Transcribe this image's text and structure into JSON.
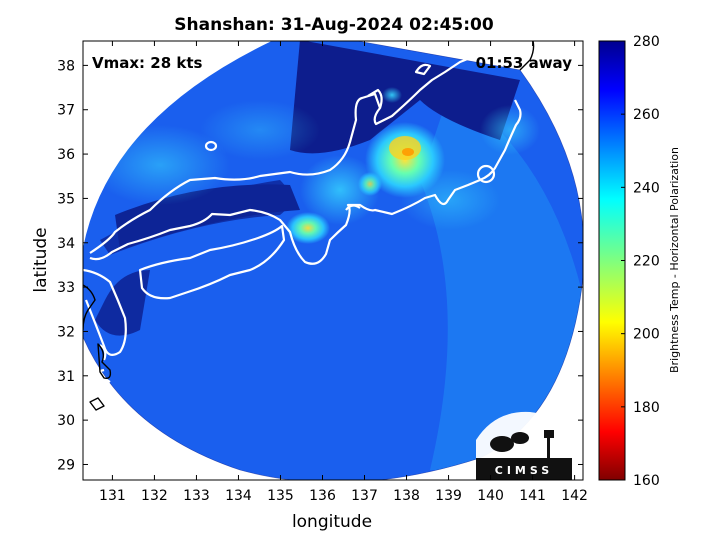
{
  "title": "Shanshan: 31-Aug-2024 02:45:00",
  "annotations": {
    "vmax": "Vmax: 28 kts",
    "time_away": "01:53 away"
  },
  "logo_text": "CIMSS",
  "axes": {
    "xlabel": "longitude",
    "ylabel": "latitude",
    "xlim": [
      130.3,
      142.2
    ],
    "ylim": [
      28.65,
      38.55
    ],
    "xticks": [
      "131",
      "132",
      "133",
      "134",
      "135",
      "136",
      "137",
      "138",
      "139",
      "140",
      "141",
      "142"
    ],
    "yticks": [
      "29",
      "30",
      "31",
      "32",
      "33",
      "34",
      "35",
      "36",
      "37",
      "38"
    ]
  },
  "colorbar": {
    "label": "Brightness Temp - Horizontal Polarization",
    "ticks": [
      "280",
      "260",
      "240",
      "220",
      "200",
      "180",
      "160"
    ],
    "range": [
      160,
      280
    ],
    "colormap": "jet"
  },
  "colors": {
    "background_field": "#1a55e8",
    "deep_blue": "#0c1c8c",
    "coastline": "#ffffff",
    "outer_coastline": "#000000"
  }
}
